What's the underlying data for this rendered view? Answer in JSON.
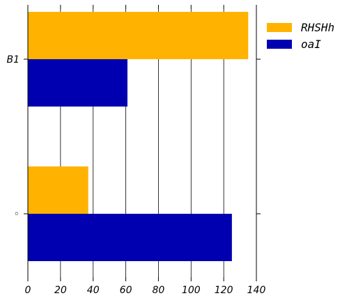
{
  "chart_data": {
    "type": "bar",
    "orientation": "horizontal",
    "categories": [
      "B1",
      "◦"
    ],
    "series": [
      {
        "name": "RHSHh",
        "color": "#FFB300",
        "values": [
          135,
          37
        ]
      },
      {
        "name": "oaI",
        "color": "#0000B0",
        "values": [
          61,
          125
        ]
      }
    ],
    "xlim": [
      0,
      140
    ],
    "xticks": [
      0,
      20,
      40,
      60,
      80,
      100,
      120,
      140
    ],
    "xtick_labels": [
      "0",
      "20",
      "40",
      "60",
      "80",
      "100",
      "120",
      "140"
    ],
    "grid": "vertical",
    "legend": "top-right, outside plot",
    "title": "",
    "xlabel": "",
    "ylabel": ""
  }
}
